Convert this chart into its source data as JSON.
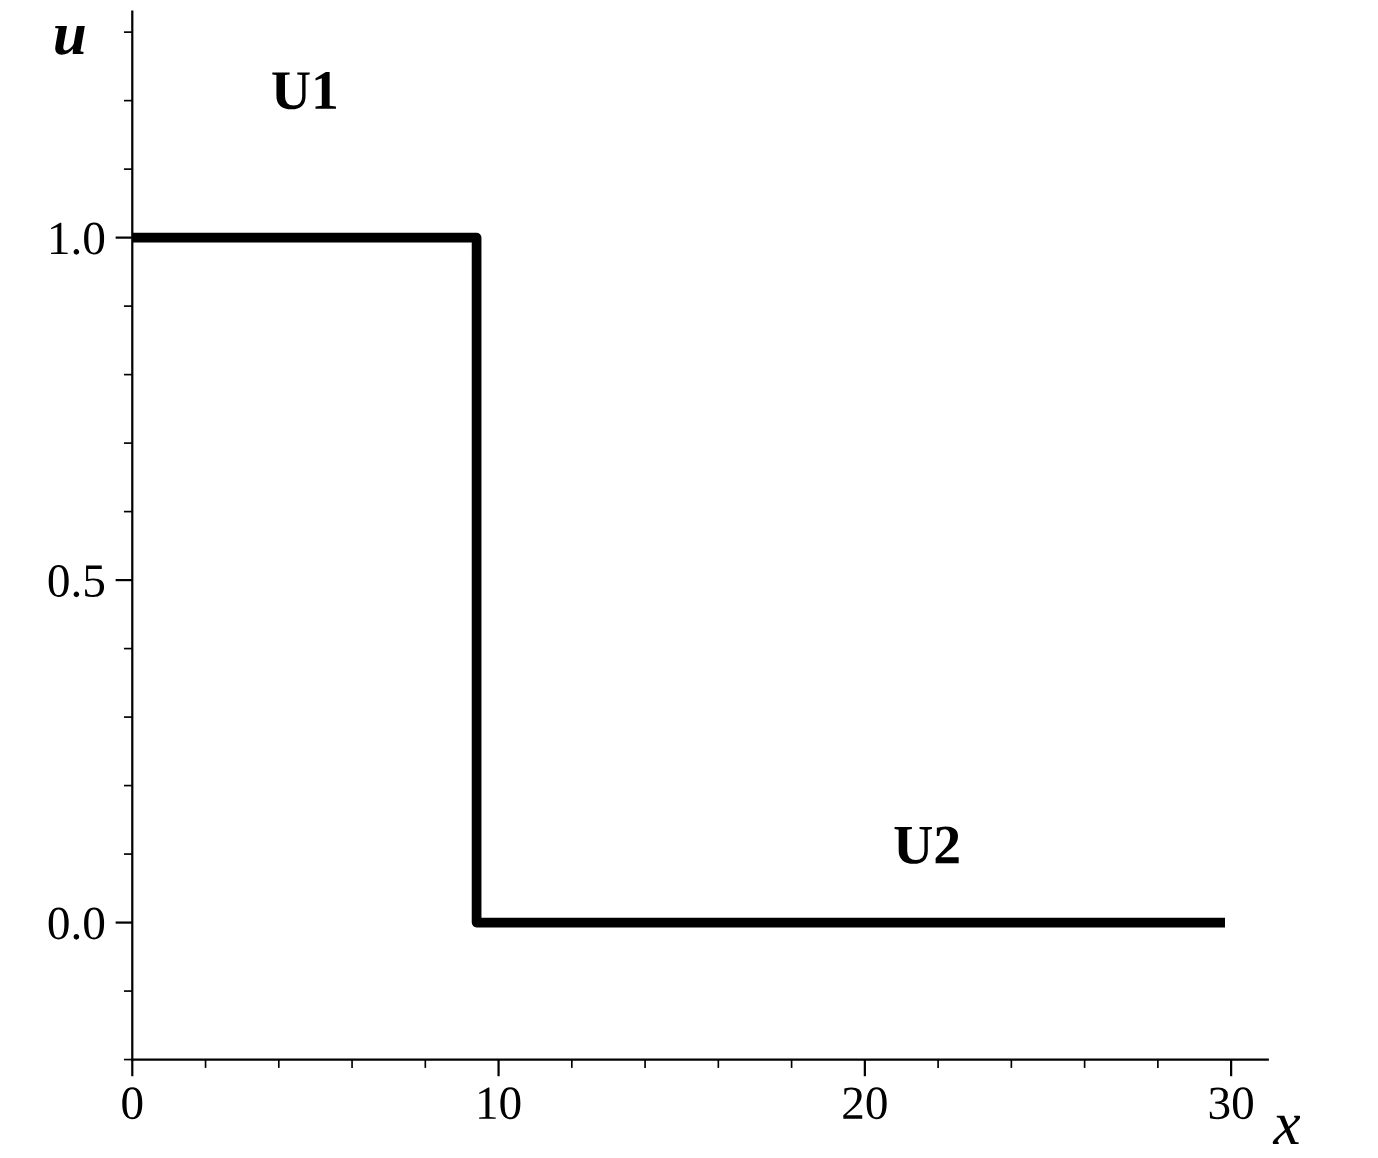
{
  "chart_data": {
    "type": "step",
    "xlabel": "x",
    "ylabel": "u",
    "x": [
      0,
      9.4,
      29.7
    ],
    "series": [
      {
        "color": "#000000",
        "values": [
          1,
          0,
          0
        ]
      }
    ],
    "xlim": [
      0,
      31
    ],
    "ylim": [
      -0.2,
      1.33
    ],
    "xticks": [
      0,
      10,
      20,
      30
    ],
    "yticks": [
      {
        "value": 0,
        "label": "0.0"
      },
      {
        "value": 0.5,
        "label": "0.5"
      },
      {
        "value": 1,
        "label": "1.0"
      }
    ],
    "annotations": [
      "U1",
      "U2"
    ],
    "grid": false
  }
}
